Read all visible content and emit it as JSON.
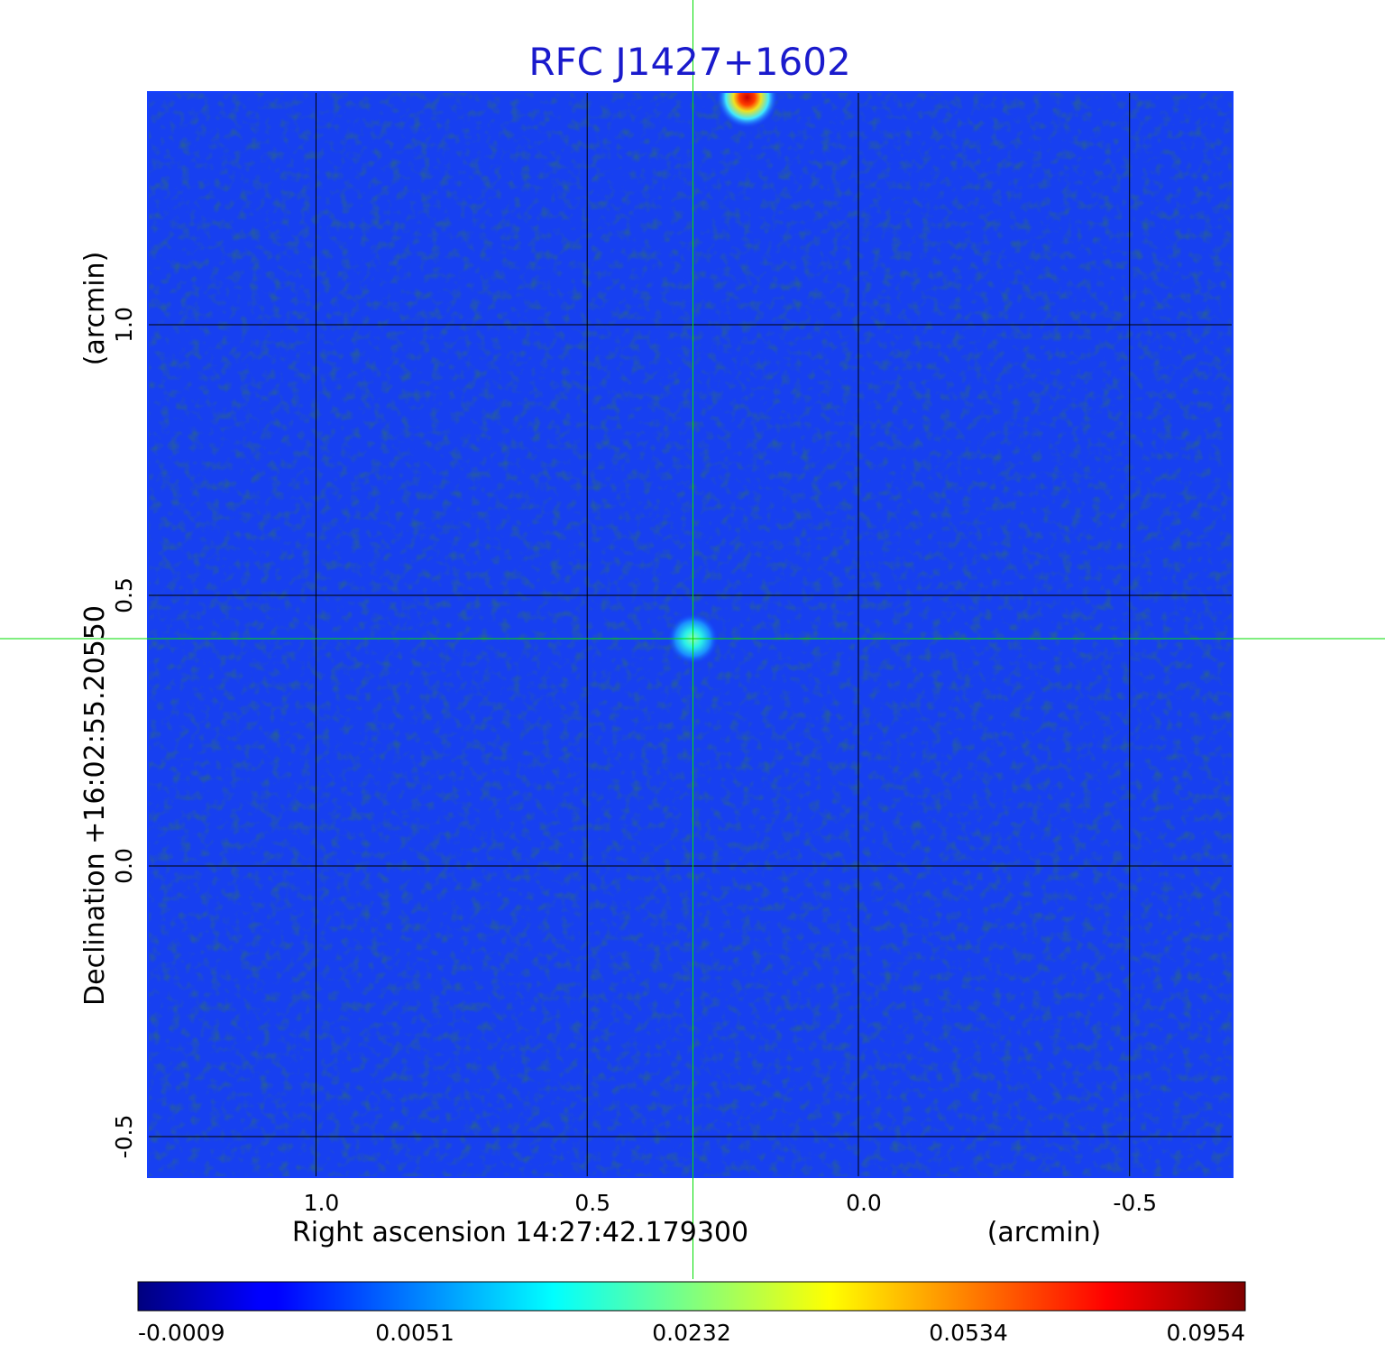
{
  "chart_data": {
    "type": "heatmap",
    "title": "RFC J1427+1602",
    "title_color": "#1a1acc",
    "xlabel": "Right ascension  14:27:42.179300",
    "xunit": "(arcmin)",
    "ylabel": "Declination  +16:02:55.20550",
    "yunit": "(arcmin)",
    "x_ticks": [
      1.0,
      0.5,
      0.0,
      -0.5
    ],
    "x_tick_labels": [
      "1.0",
      "0.5",
      "0.0",
      "-0.5"
    ],
    "y_ticks": [
      1.0,
      0.5,
      0.0,
      -0.5
    ],
    "y_tick_labels": [
      "1.0",
      "0.5",
      "0.0",
      "-0.5"
    ],
    "xlim": [
      1.31,
      -0.69
    ],
    "ylim": [
      -0.575,
      1.43
    ],
    "grid": true,
    "crosshair": {
      "x": 0.305,
      "y": 0.42,
      "color": "#00dd00"
    },
    "sources": [
      {
        "x": 0.305,
        "y": 0.42,
        "peak": 0.0232
      },
      {
        "x": 0.205,
        "y": 1.42,
        "peak": 0.0954
      }
    ],
    "colormap": "jet",
    "colorbar": {
      "ticks": [
        -0.0009,
        0.0051,
        0.0232,
        0.0534,
        0.0954
      ],
      "tick_labels": [
        "-0.0009",
        "0.0051",
        "0.0232",
        "0.0534",
        "0.0954"
      ]
    }
  }
}
